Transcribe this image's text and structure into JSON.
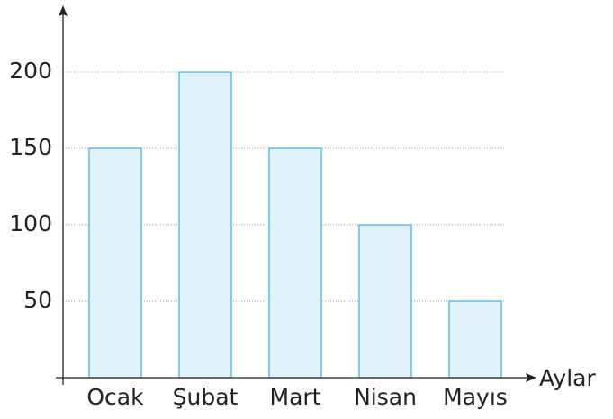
{
  "chart_data": {
    "type": "bar",
    "x_label": "Aylar",
    "categories": [
      "Ocak",
      "Şubat",
      "Mart",
      "Nisan",
      "Mayıs"
    ],
    "values": [
      150,
      200,
      150,
      100,
      50
    ],
    "color": "#dff2fc",
    "edge_color": "#3aaee0",
    "ylim": [
      0,
      240
    ],
    "yticks": [
      50,
      100,
      150,
      200
    ],
    "grid": true
  }
}
